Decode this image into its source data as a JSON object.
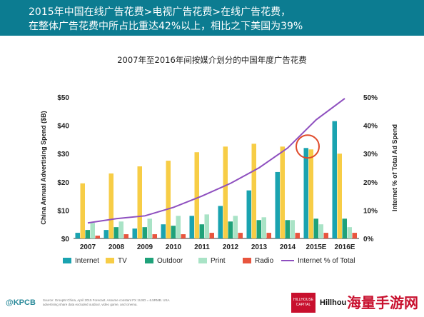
{
  "header": {
    "line1": "2015年中国在线广告花费>电视广告花费>在线广告花费，",
    "line2": "在整体广告花费中所占比重达42%以上，相比之下美国为39%"
  },
  "chart_data": {
    "type": "bar",
    "title": "2007年至2016年间按媒介划分的中国年度广告花费",
    "ylabel": "China Annual Advertising Spend ($B)",
    "y2label": "Internet % of Total Ad Spend",
    "ylim": [
      0,
      50
    ],
    "y2lim": [
      0,
      50
    ],
    "y_ticks": [
      "$0",
      "$10",
      "$20",
      "$30",
      "$40",
      "$50"
    ],
    "y2_ticks": [
      "0%",
      "10%",
      "20%",
      "30%",
      "40%",
      "50%"
    ],
    "categories": [
      "2007",
      "2008",
      "2009",
      "2010",
      "2011",
      "2012",
      "2013",
      "2014",
      "2015E",
      "2016E"
    ],
    "series": [
      {
        "name": "Internet",
        "color": "#1aa3b0",
        "values": [
          2,
          3,
          3.5,
          5,
          8,
          11.5,
          17,
          23.5,
          32,
          41.5
        ]
      },
      {
        "name": "TV",
        "color": "#f7cd46",
        "values": [
          19.5,
          23,
          25.5,
          27.5,
          30.5,
          32.5,
          33.5,
          32.5,
          31.5,
          30
        ]
      },
      {
        "name": "Outdoor",
        "color": "#1fa27a",
        "values": [
          3,
          4,
          4,
          4.5,
          5,
          6,
          6.5,
          6.5,
          7,
          7
        ]
      },
      {
        "name": "Print",
        "color": "#a9e3c6",
        "values": [
          5.5,
          6,
          7,
          8,
          8.5,
          8,
          7.5,
          6.5,
          5,
          4
        ]
      },
      {
        "name": "Radio",
        "color": "#e8553e",
        "values": [
          1,
          1.5,
          1.5,
          1.5,
          2,
          2,
          2,
          2,
          2,
          2
        ]
      }
    ],
    "line_series": {
      "name": "Internet % of Total",
      "color": "#8e4fbf",
      "axis": "right",
      "values": [
        5.5,
        7,
        8,
        11,
        15,
        19.5,
        25,
        32,
        42,
        49.5
      ]
    },
    "annotation": "circle highlighting 2015E Internet bar",
    "legend_position": "bottom",
    "grid": false
  },
  "footer": {
    "logo": "@KPCB",
    "note": "Source: GroupM China, April 2015 Forecast. Assume constant FX 1USD = 6.5RMB. USA advertising share data excluded outdoor, video game, and cinema.",
    "hill": "Hillhou",
    "badge": "HILLHOUSE CAPITAL",
    "brand": "海量手游网"
  }
}
